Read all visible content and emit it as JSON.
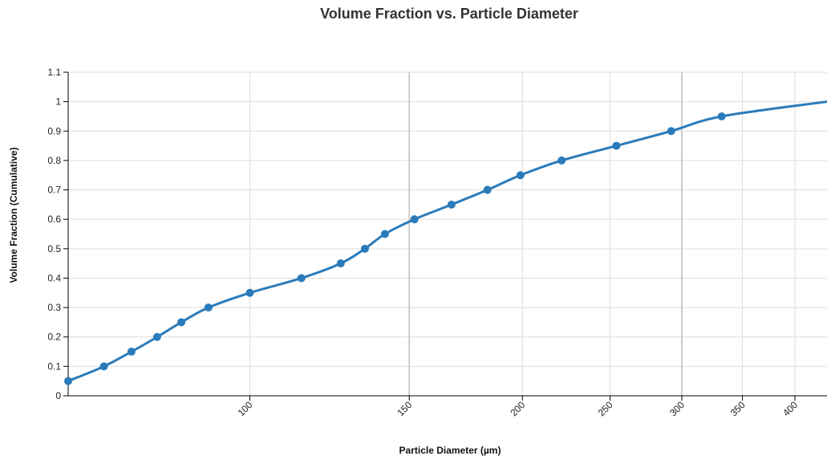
{
  "chart_data": {
    "type": "line",
    "title": "Volume Fraction vs. Particle Diameter",
    "xlabel": "Particle Diameter (µm)",
    "ylabel": "Volume Fraction (Cumulative)",
    "xlim": [
      63,
      434
    ],
    "ylim": [
      0,
      1.1
    ],
    "x_scale": "log",
    "x_ticks": [
      100,
      150,
      200,
      250,
      300,
      350,
      400
    ],
    "x_tick_labels": [
      "100",
      "150",
      "200",
      "250",
      "300",
      "350",
      "400"
    ],
    "x_major_grid": [
      150,
      300
    ],
    "y_ticks": [
      0,
      0.1,
      0.2,
      0.3,
      0.4,
      0.5,
      0.6,
      0.7,
      0.8,
      0.9,
      1,
      1.1
    ],
    "y_tick_labels": [
      "0",
      "0.1",
      "0.2",
      "0.3",
      "0.4",
      "0.5",
      "0.6",
      "0.7",
      "0.8",
      "0.9",
      "1",
      "1.1"
    ],
    "grid": true,
    "series": [
      {
        "color": "#2b7bba",
        "x": [
          63,
          69,
          74,
          79,
          84,
          90,
          100,
          114,
          126,
          134,
          141,
          152,
          167,
          183,
          199,
          221,
          254,
          292,
          332,
          434
        ],
        "y": [
          0.05,
          0.1,
          0.15,
          0.2,
          0.25,
          0.3,
          0.35,
          0.4,
          0.45,
          0.5,
          0.55,
          0.6,
          0.65,
          0.7,
          0.75,
          0.8,
          0.85,
          0.9,
          0.95,
          1.0
        ],
        "markers": [
          true,
          true,
          true,
          true,
          true,
          true,
          true,
          true,
          true,
          true,
          true,
          true,
          true,
          true,
          true,
          true,
          true,
          true,
          true,
          false
        ]
      }
    ]
  }
}
